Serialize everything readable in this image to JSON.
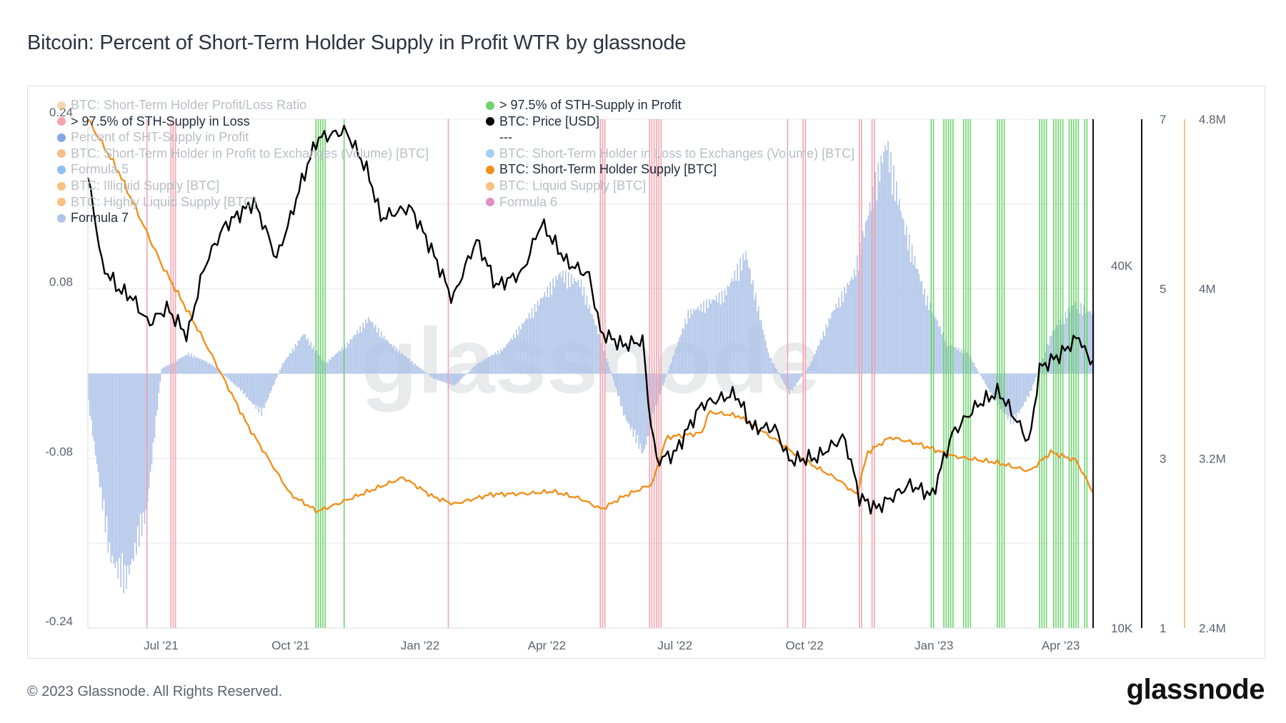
{
  "header": {
    "title": "Bitcoin: Percent of Short-Term Holder Supply in Profit WTR by glassnode"
  },
  "footer": {
    "copyright": "© 2023 Glassnode. All Rights Reserved.",
    "logo_text": "glassnode"
  },
  "watermark": "glassnode",
  "legend": {
    "items": [
      {
        "label": "BTC: Short-Term Holder Profit/Loss Ratio",
        "color": "#e8b96e",
        "active": false
      },
      {
        "label": "> 97.5% of STH-Supply in Profit",
        "color": "#6ed36e",
        "active": true
      },
      {
        "label": "> 97.5% of STH-Supply in Loss",
        "color": "#f5a3ae",
        "active": true
      },
      {
        "label": "BTC: Price [USD]",
        "color": "#000000",
        "active": true
      },
      {
        "label": "Percent of SHT-Supply in Profit",
        "color": "#1f5fd8",
        "active": false
      },
      {
        "label": "---",
        "color": "",
        "active": true
      },
      {
        "label": "BTC: Short-Term Holder in Profit to Exchanges (Volume) [BTC]",
        "color": "#f08a24",
        "active": false
      },
      {
        "label": "BTC: Short-Term Holder in Loss to Exchanges (Volume) [BTC]",
        "color": "#5aa6e6",
        "active": false
      },
      {
        "label": "Formula 5",
        "color": "#2d8be8",
        "active": false
      },
      {
        "label": "BTC: Short-Term Holder Supply [BTC]",
        "color": "#f0901c",
        "active": true
      },
      {
        "label": "BTC: Illiquid Supply [BTC]",
        "color": "#f0901c",
        "active": false
      },
      {
        "label": "BTC: Liquid Supply [BTC]",
        "color": "#f0901c",
        "active": false
      },
      {
        "label": "BTC: Highly Liquid Supply [BTC]",
        "color": "#f0901c",
        "active": false
      },
      {
        "label": "Formula 6",
        "color": "#c8379c",
        "active": false
      },
      {
        "label": "Formula 7",
        "color": "#aec3e8",
        "active": true
      }
    ]
  },
  "chart_data": {
    "type": "line",
    "title": "Bitcoin: Percent of Short-Term Holder Supply in Profit WTR by glassnode",
    "x_ticks": [
      "Jul '21",
      "Oct '21",
      "Jan '22",
      "Apr '22",
      "Jul '22",
      "Oct '22",
      "Jan '23",
      "Apr '23"
    ],
    "x_range": [
      "2021-05-10",
      "2023-04-24"
    ],
    "left_axis": {
      "ticks": [
        "0.24",
        "0.08",
        "-0.08",
        "-0.24"
      ],
      "range": [
        -0.24,
        0.24
      ]
    },
    "price_axis": {
      "ticks": [
        "40K",
        "10K"
      ],
      "scale": "log",
      "range": [
        10000,
        70000
      ]
    },
    "ratio_axis": {
      "ticks": [
        "7",
        "5",
        "3",
        "1"
      ],
      "range": [
        1,
        7
      ]
    },
    "supply_axis": {
      "ticks": [
        "4.8M",
        "4M",
        "3.2M",
        "2.4M"
      ],
      "range": [
        2400000,
        4800000
      ]
    },
    "colors": {
      "price": "#000000",
      "sth_supply": "#f0901c",
      "formula7": "#aec3e8",
      "profit_band": "#6ed36e",
      "loss_band": "#f5a3ae"
    },
    "series": [
      {
        "name": "BTC: Price [USD]",
        "points": [
          [
            "2021-05-10",
            56000
          ],
          [
            "2021-05-20",
            40000
          ],
          [
            "2021-06-01",
            36500
          ],
          [
            "2021-06-10",
            35500
          ],
          [
            "2021-06-22",
            32000
          ],
          [
            "2021-07-05",
            34000
          ],
          [
            "2021-07-20",
            30500
          ],
          [
            "2021-08-01",
            40000
          ],
          [
            "2021-08-15",
            46500
          ],
          [
            "2021-09-05",
            51000
          ],
          [
            "2021-09-21",
            41000
          ],
          [
            "2021-10-01",
            48000
          ],
          [
            "2021-10-20",
            65000
          ],
          [
            "2021-11-09",
            67000
          ],
          [
            "2021-11-25",
            57000
          ],
          [
            "2021-12-04",
            48000
          ],
          [
            "2021-12-25",
            50000
          ],
          [
            "2022-01-10",
            42000
          ],
          [
            "2022-01-24",
            35000
          ],
          [
            "2022-02-10",
            44000
          ],
          [
            "2022-02-24",
            37000
          ],
          [
            "2022-03-15",
            39000
          ],
          [
            "2022-03-28",
            47000
          ],
          [
            "2022-04-15",
            40500
          ],
          [
            "2022-05-01",
            38500
          ],
          [
            "2022-05-09",
            31000
          ],
          [
            "2022-05-25",
            29500
          ],
          [
            "2022-06-08",
            30000
          ],
          [
            "2022-06-13",
            22500
          ],
          [
            "2022-06-18",
            19000
          ],
          [
            "2022-07-01",
            19500
          ],
          [
            "2022-07-20",
            23500
          ],
          [
            "2022-08-13",
            24500
          ],
          [
            "2022-08-25",
            21500
          ],
          [
            "2022-09-10",
            21500
          ],
          [
            "2022-09-20",
            19000
          ],
          [
            "2022-10-10",
            19200
          ],
          [
            "2022-10-29",
            20800
          ],
          [
            "2022-11-09",
            16500
          ],
          [
            "2022-11-21",
            15800
          ],
          [
            "2022-12-15",
            17300
          ],
          [
            "2022-12-31",
            16600
          ],
          [
            "2023-01-14",
            21000
          ],
          [
            "2023-02-01",
            23500
          ],
          [
            "2023-02-16",
            24700
          ],
          [
            "2023-03-10",
            20200
          ],
          [
            "2023-03-17",
            27000
          ],
          [
            "2023-04-01",
            28500
          ],
          [
            "2023-04-14",
            30500
          ],
          [
            "2023-04-21",
            27800
          ],
          [
            "2023-04-24",
            28000
          ]
        ]
      },
      {
        "name": "BTC: Short-Term Holder Supply [BTC]",
        "points": [
          [
            "2021-05-10",
            4800000
          ],
          [
            "2021-06-01",
            4550000
          ],
          [
            "2021-07-01",
            4120000
          ],
          [
            "2021-08-01",
            3750000
          ],
          [
            "2021-09-01",
            3350000
          ],
          [
            "2021-10-01",
            3030000
          ],
          [
            "2021-10-20",
            2950000
          ],
          [
            "2021-11-01",
            2980000
          ],
          [
            "2021-12-01",
            3060000
          ],
          [
            "2021-12-20",
            3110000
          ],
          [
            "2022-01-10",
            3020000
          ],
          [
            "2022-01-25",
            2985000
          ],
          [
            "2022-02-20",
            3030000
          ],
          [
            "2022-03-20",
            3035000
          ],
          [
            "2022-04-05",
            3045000
          ],
          [
            "2022-04-25",
            3010000
          ],
          [
            "2022-05-10",
            2960000
          ],
          [
            "2022-05-25",
            3020000
          ],
          [
            "2022-06-15",
            3080000
          ],
          [
            "2022-06-25",
            3300000
          ],
          [
            "2022-07-20",
            3320000
          ],
          [
            "2022-07-25",
            3420000
          ],
          [
            "2022-08-15",
            3400000
          ],
          [
            "2022-09-10",
            3290000
          ],
          [
            "2022-10-01",
            3190000
          ],
          [
            "2022-10-25",
            3100000
          ],
          [
            "2022-11-07",
            3030000
          ],
          [
            "2022-11-15",
            3230000
          ],
          [
            "2022-12-01",
            3300000
          ],
          [
            "2022-12-20",
            3270000
          ],
          [
            "2023-01-15",
            3210000
          ],
          [
            "2023-02-15",
            3180000
          ],
          [
            "2023-03-10",
            3140000
          ],
          [
            "2023-03-25",
            3230000
          ],
          [
            "2023-04-12",
            3190000
          ],
          [
            "2023-04-24",
            3040000
          ]
        ]
      },
      {
        "name": "Formula 7",
        "points": [
          [
            "2021-05-10",
            -0.03
          ],
          [
            "2021-05-25",
            -0.18
          ],
          [
            "2021-06-05",
            -0.21
          ],
          [
            "2021-06-20",
            -0.14
          ],
          [
            "2021-07-01",
            0.005
          ],
          [
            "2021-07-20",
            0.02
          ],
          [
            "2021-08-05",
            0.01
          ],
          [
            "2021-08-25",
            -0.015
          ],
          [
            "2021-09-10",
            -0.04
          ],
          [
            "2021-09-25",
            0.01
          ],
          [
            "2021-10-10",
            0.04
          ],
          [
            "2021-10-25",
            0.01
          ],
          [
            "2021-11-10",
            0.03
          ],
          [
            "2021-11-25",
            0.055
          ],
          [
            "2021-12-10",
            0.03
          ],
          [
            "2022-01-10",
            -0.005
          ],
          [
            "2022-01-25",
            -0.012
          ],
          [
            "2022-02-10",
            0.01
          ],
          [
            "2022-03-01",
            0.025
          ],
          [
            "2022-03-20",
            0.06
          ],
          [
            "2022-04-10",
            0.1
          ],
          [
            "2022-04-25",
            0.09
          ],
          [
            "2022-05-10",
            0.03
          ],
          [
            "2022-05-25",
            -0.04
          ],
          [
            "2022-06-08",
            -0.08
          ],
          [
            "2022-06-20",
            -0.02
          ],
          [
            "2022-07-10",
            0.06
          ],
          [
            "2022-08-05",
            0.08
          ],
          [
            "2022-08-20",
            0.12
          ],
          [
            "2022-09-05",
            0.02
          ],
          [
            "2022-09-20",
            -0.02
          ],
          [
            "2022-10-05",
            0.01
          ],
          [
            "2022-10-20",
            0.06
          ],
          [
            "2022-11-05",
            0.1
          ],
          [
            "2022-11-20",
            0.19
          ],
          [
            "2022-11-28",
            0.23
          ],
          [
            "2022-12-10",
            0.15
          ],
          [
            "2022-12-25",
            0.08
          ],
          [
            "2023-01-10",
            0.03
          ],
          [
            "2023-01-25",
            0.02
          ],
          [
            "2023-02-10",
            -0.02
          ],
          [
            "2023-02-25",
            -0.05
          ],
          [
            "2023-03-10",
            -0.02
          ],
          [
            "2023-03-25",
            0.04
          ],
          [
            "2023-04-10",
            0.07
          ],
          [
            "2023-04-24",
            0.06
          ]
        ]
      }
    ],
    "profit_bands": [
      [
        "2021-10-19",
        "2021-10-26"
      ],
      [
        "2021-11-08",
        "2021-11-09"
      ],
      [
        "2022-12-30",
        "2023-01-02"
      ],
      [
        "2023-01-08",
        "2023-01-15"
      ],
      [
        "2023-01-22",
        "2023-01-27"
      ],
      [
        "2023-02-15",
        "2023-02-20"
      ],
      [
        "2023-03-17",
        "2023-03-22"
      ],
      [
        "2023-03-27",
        "2023-04-03"
      ],
      [
        "2023-04-07",
        "2023-04-14"
      ],
      [
        "2023-04-18",
        "2023-04-20"
      ]
    ],
    "loss_bands": [
      [
        "2021-06-21",
        "2021-06-21"
      ],
      [
        "2021-07-08",
        "2021-07-12"
      ],
      [
        "2022-01-21",
        "2022-01-22"
      ],
      [
        "2022-05-09",
        "2022-05-13"
      ],
      [
        "2022-06-13",
        "2022-06-22"
      ],
      [
        "2022-09-19",
        "2022-09-19"
      ],
      [
        "2022-09-30",
        "2022-10-03"
      ],
      [
        "2022-11-09",
        "2022-11-12"
      ],
      [
        "2022-11-18",
        "2022-11-21"
      ]
    ]
  }
}
